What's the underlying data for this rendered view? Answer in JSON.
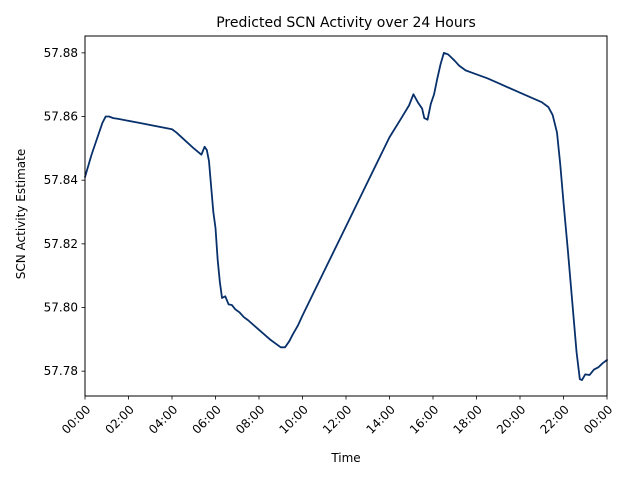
{
  "chart_data": {
    "type": "line",
    "title": "Predicted SCN Activity over 24 Hours",
    "xlabel": "Time",
    "ylabel": "SCN Activity Estimate",
    "xlim": [
      0,
      24
    ],
    "ylim": [
      57.7722,
      57.8853
    ],
    "x_ticks": [
      {
        "value": 0,
        "label": "00:00"
      },
      {
        "value": 2,
        "label": "02:00"
      },
      {
        "value": 4,
        "label": "04:00"
      },
      {
        "value": 6,
        "label": "06:00"
      },
      {
        "value": 8,
        "label": "08:00"
      },
      {
        "value": 10,
        "label": "10:00"
      },
      {
        "value": 12,
        "label": "12:00"
      },
      {
        "value": 14,
        "label": "14:00"
      },
      {
        "value": 16,
        "label": "16:00"
      },
      {
        "value": 18,
        "label": "18:00"
      },
      {
        "value": 20,
        "label": "20:00"
      },
      {
        "value": 22,
        "label": "22:00"
      },
      {
        "value": 24,
        "label": "00:00"
      }
    ],
    "y_ticks": [
      {
        "value": 57.78,
        "label": "57.78"
      },
      {
        "value": 57.8,
        "label": "57.80"
      },
      {
        "value": 57.82,
        "label": "57.82"
      },
      {
        "value": 57.84,
        "label": "57.84"
      },
      {
        "value": 57.86,
        "label": "57.86"
      },
      {
        "value": 57.88,
        "label": "57.88"
      }
    ],
    "grid": false,
    "color": "#08306b",
    "series": [
      {
        "name": "",
        "x": [
          0,
          0.3,
          0.6,
          0.8,
          0.95,
          1.1,
          1.3,
          1.5,
          2.5,
          4.0,
          4.2,
          4.6,
          5.0,
          5.35,
          5.5,
          5.6,
          5.7,
          5.8,
          5.9,
          6.0,
          6.1,
          6.2,
          6.3,
          6.45,
          6.6,
          6.75,
          6.9,
          7.1,
          7.3,
          7.5,
          8.0,
          8.5,
          9.0,
          9.2,
          9.4,
          9.55,
          9.8,
          10.0,
          11.0,
          12.0,
          13.0,
          14.0,
          14.5,
          14.9,
          15.1,
          15.3,
          15.5,
          15.6,
          15.75,
          15.9,
          16.05,
          16.2,
          16.35,
          16.5,
          16.7,
          16.85,
          17.0,
          17.2,
          17.5,
          17.9,
          18.5,
          19.0,
          20.0,
          21.0,
          21.3,
          21.5,
          21.7,
          21.85,
          22.0,
          22.2,
          22.4,
          22.6,
          22.75,
          22.85,
          23.0,
          23.2,
          23.4,
          23.6,
          23.8,
          24.0
        ],
        "y": [
          57.841,
          57.848,
          57.854,
          57.858,
          57.86,
          57.86,
          57.8595,
          57.8593,
          57.858,
          57.856,
          57.855,
          57.8525,
          57.85,
          57.848,
          57.8505,
          57.8495,
          57.846,
          57.838,
          57.83,
          57.825,
          57.815,
          57.808,
          57.803,
          57.8035,
          57.801,
          57.8008,
          57.7995,
          57.7985,
          57.797,
          57.796,
          57.793,
          57.79,
          57.7875,
          57.7875,
          57.7895,
          57.7915,
          57.7945,
          57.7975,
          57.8115,
          57.8255,
          57.8395,
          57.8535,
          57.859,
          57.8635,
          57.867,
          57.8645,
          57.8625,
          57.8595,
          57.859,
          57.864,
          57.867,
          57.872,
          57.8765,
          57.88,
          57.8795,
          57.8785,
          57.8775,
          57.876,
          57.8745,
          57.8735,
          57.872,
          57.8705,
          57.8675,
          57.8645,
          57.863,
          57.8605,
          57.855,
          57.845,
          57.833,
          57.818,
          57.802,
          57.786,
          57.7775,
          57.7772,
          57.779,
          57.7788,
          57.7805,
          57.7812,
          57.7825,
          57.7835
        ]
      }
    ]
  }
}
